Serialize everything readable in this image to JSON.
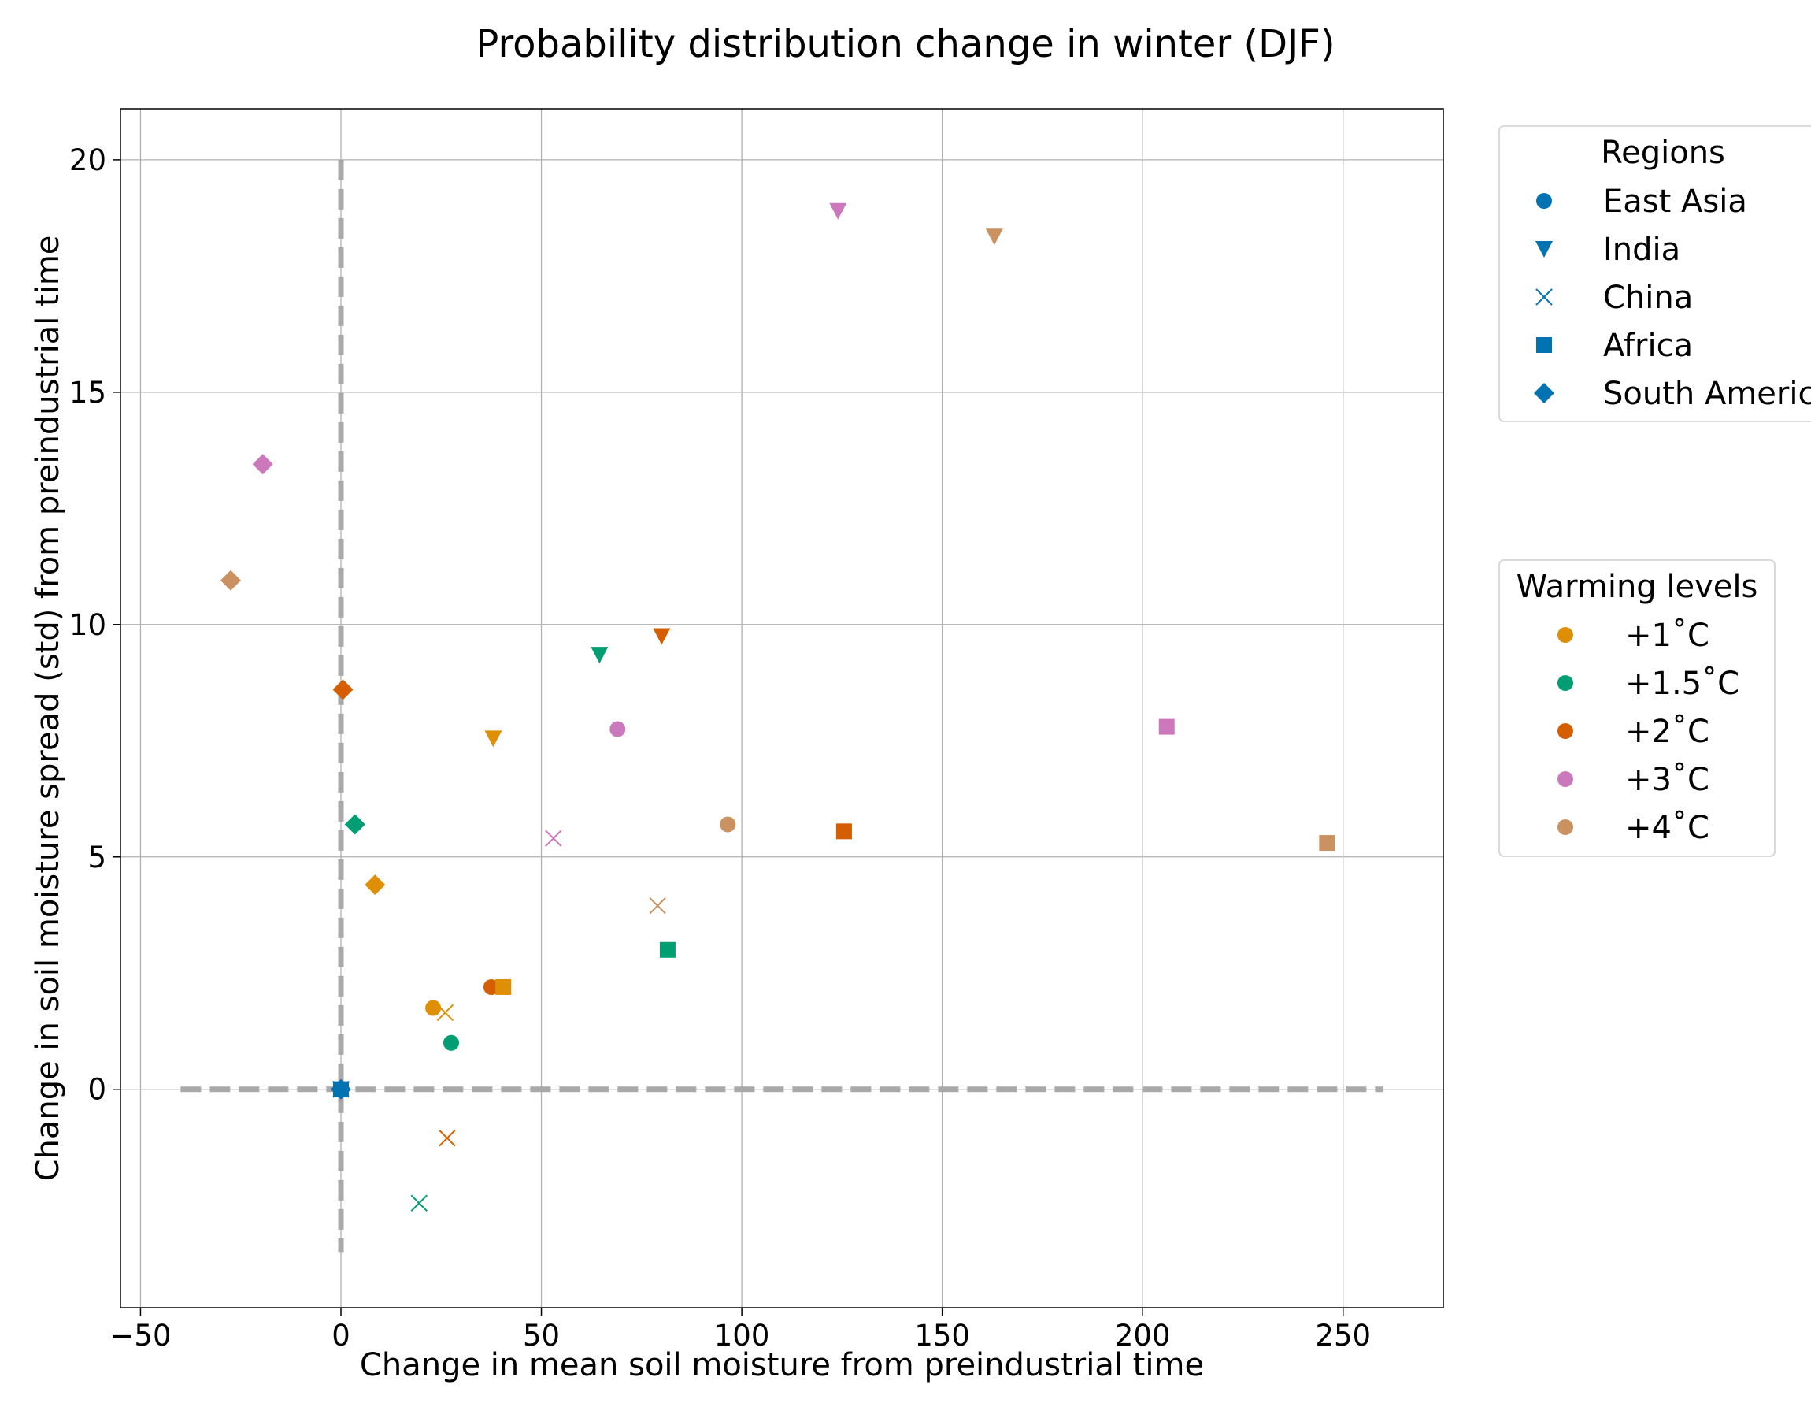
{
  "chart_data": {
    "type": "scatter",
    "title": "Probability distribution change in winter (DJF)",
    "xlabel": "Change in mean soil moisture from preindustrial time",
    "ylabel": "Change in soil moisture spread (std) from preindustrial time",
    "xlim": [
      -55,
      275
    ],
    "ylim": [
      -4.7,
      21.1
    ],
    "xticks": [
      -50,
      0,
      50,
      100,
      150,
      200,
      250
    ],
    "yticks": [
      0,
      5,
      10,
      15,
      20
    ],
    "grid": true,
    "reference_lines": {
      "horizontal": {
        "y": 0,
        "x_range": [
          -40,
          260
        ],
        "style": "dashed"
      },
      "vertical": {
        "x": 0,
        "y_range": [
          -3.5,
          20
        ],
        "style": "dashed"
      }
    },
    "legends": {
      "regions": {
        "title": "Regions",
        "placement": "right-top",
        "entries": [
          {
            "label": "East Asia",
            "marker": "circle"
          },
          {
            "label": "India",
            "marker": "triangle-down"
          },
          {
            "label": "China",
            "marker": "x"
          },
          {
            "label": "Africa",
            "marker": "square"
          },
          {
            "label": "South America",
            "marker": "diamond"
          }
        ]
      },
      "warming": {
        "title": "Warming levels",
        "placement": "right-middle",
        "entries": [
          {
            "label": "+1˚C",
            "color": "#de8f05"
          },
          {
            "label": "+1.5˚C",
            "color": "#029e73"
          },
          {
            "label": "+2˚C",
            "color": "#d55e00"
          },
          {
            "label": "+3˚C",
            "color": "#cc78bc"
          },
          {
            "label": "+4˚C",
            "color": "#ca9161"
          }
        ]
      }
    },
    "baseline_color": "#0173b2",
    "points": [
      {
        "region": "East Asia",
        "level": "baseline",
        "x": 0,
        "y": 0
      },
      {
        "region": "India",
        "level": "baseline",
        "x": 0,
        "y": 0
      },
      {
        "region": "China",
        "level": "baseline",
        "x": 0,
        "y": 0
      },
      {
        "region": "Africa",
        "level": "baseline",
        "x": 0,
        "y": 0
      },
      {
        "region": "South America",
        "level": "baseline",
        "x": 0,
        "y": 0
      },
      {
        "region": "East Asia",
        "level": "+1˚C",
        "x": 23,
        "y": 1.75
      },
      {
        "region": "East Asia",
        "level": "+1.5˚C",
        "x": 27.5,
        "y": 1.0
      },
      {
        "region": "East Asia",
        "level": "+2˚C",
        "x": 37.5,
        "y": 2.2
      },
      {
        "region": "East Asia",
        "level": "+3˚C",
        "x": 69,
        "y": 7.75
      },
      {
        "region": "East Asia",
        "level": "+4˚C",
        "x": 96.5,
        "y": 5.7
      },
      {
        "region": "India",
        "level": "+1˚C",
        "x": 38,
        "y": 7.55
      },
      {
        "region": "India",
        "level": "+1.5˚C",
        "x": 64.5,
        "y": 9.35
      },
      {
        "region": "India",
        "level": "+2˚C",
        "x": 80,
        "y": 9.75
      },
      {
        "region": "India",
        "level": "+3˚C",
        "x": 124,
        "y": 18.9
      },
      {
        "region": "India",
        "level": "+4˚C",
        "x": 163,
        "y": 18.35
      },
      {
        "region": "China",
        "level": "+1˚C",
        "x": 26,
        "y": 1.65
      },
      {
        "region": "China",
        "level": "+1.5˚C",
        "x": 19.5,
        "y": -2.45
      },
      {
        "region": "China",
        "level": "+2˚C",
        "x": 26.5,
        "y": -1.05
      },
      {
        "region": "China",
        "level": "+3˚C",
        "x": 53,
        "y": 5.4
      },
      {
        "region": "China",
        "level": "+4˚C",
        "x": 79,
        "y": 3.95
      },
      {
        "region": "Africa",
        "level": "+1˚C",
        "x": 40.5,
        "y": 2.2
      },
      {
        "region": "Africa",
        "level": "+1.5˚C",
        "x": 81.5,
        "y": 3.0
      },
      {
        "region": "Africa",
        "level": "+2˚C",
        "x": 125.5,
        "y": 5.55
      },
      {
        "region": "Africa",
        "level": "+3˚C",
        "x": 206,
        "y": 7.8
      },
      {
        "region": "Africa",
        "level": "+4˚C",
        "x": 246,
        "y": 5.3
      },
      {
        "region": "South America",
        "level": "+1˚C",
        "x": 8.5,
        "y": 4.4
      },
      {
        "region": "South America",
        "level": "+1.5˚C",
        "x": 3.5,
        "y": 5.7
      },
      {
        "region": "South America",
        "level": "+2˚C",
        "x": 0.5,
        "y": 8.6
      },
      {
        "region": "South America",
        "level": "+3˚C",
        "x": -19.5,
        "y": 13.45
      },
      {
        "region": "South America",
        "level": "+4˚C",
        "x": -27.5,
        "y": 10.95
      }
    ]
  }
}
